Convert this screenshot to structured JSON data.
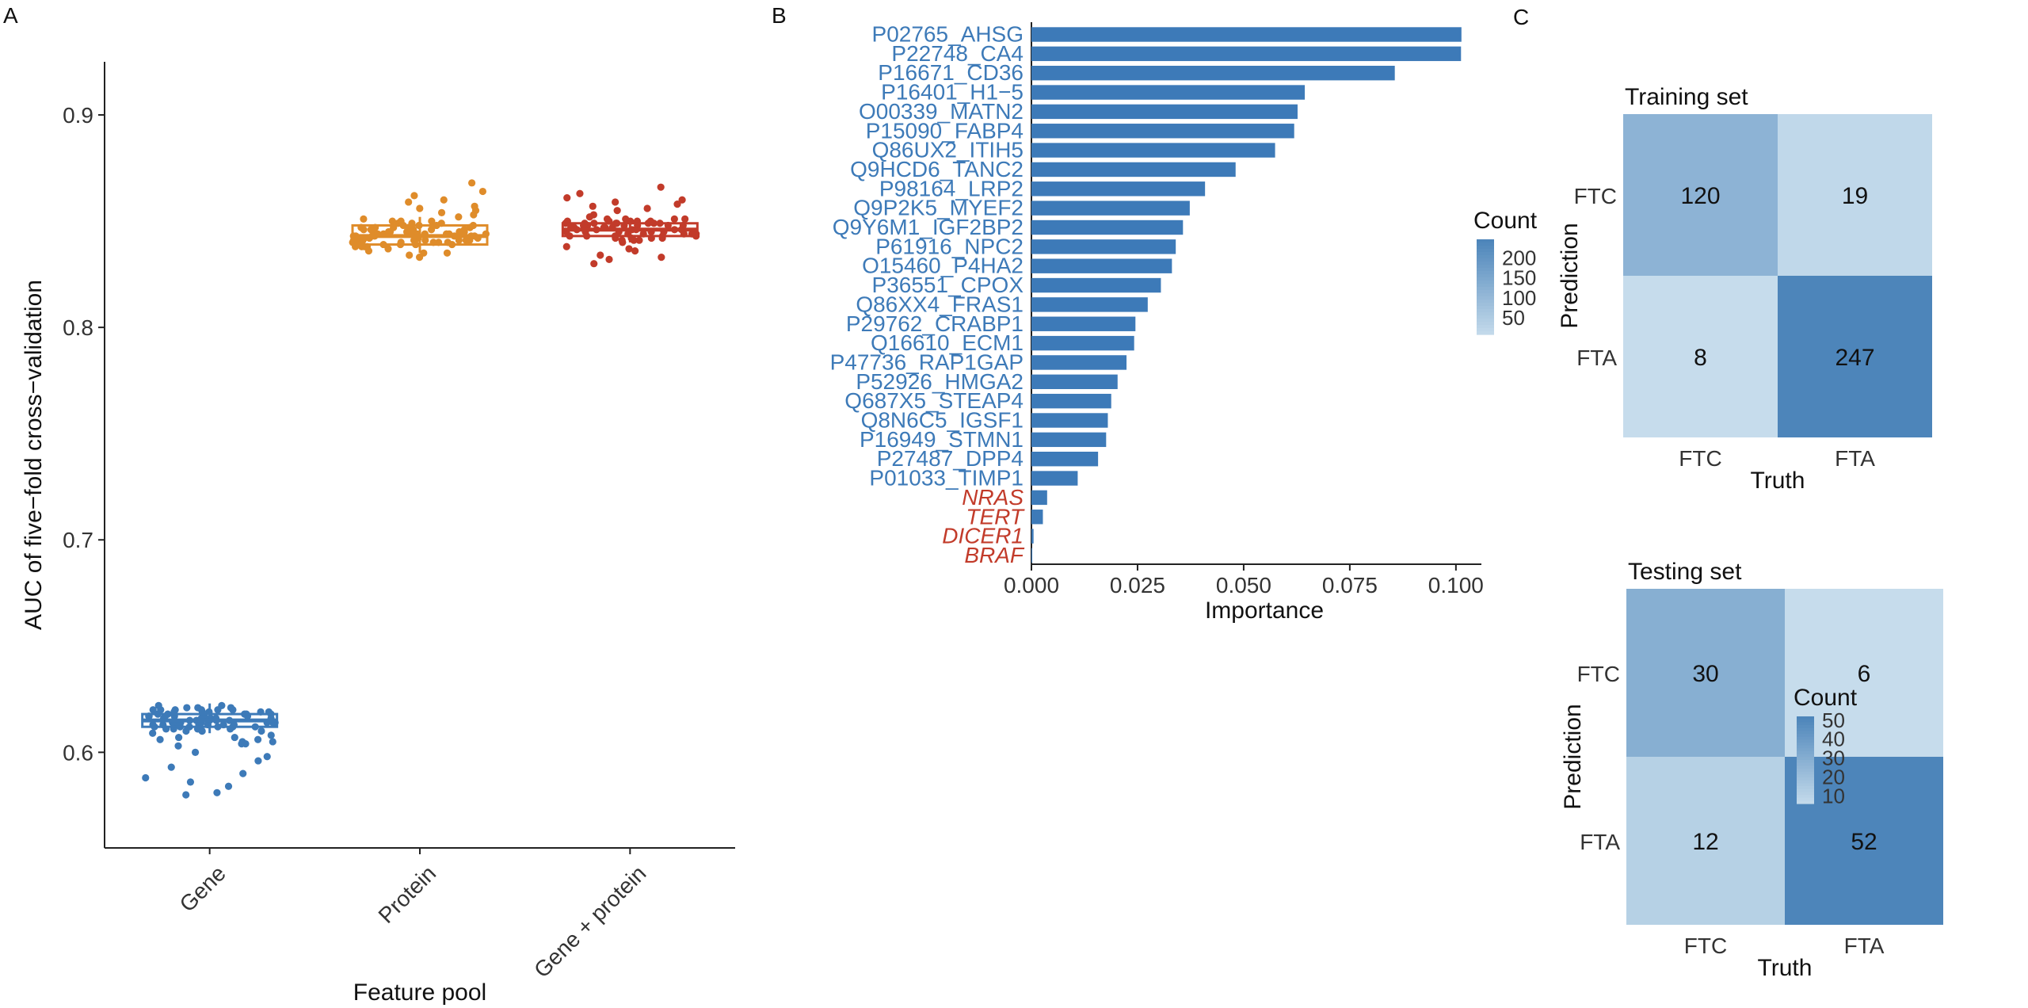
{
  "panels": {
    "a": "A",
    "b": "B",
    "c": "C"
  },
  "chart_data": [
    {
      "type": "scatter",
      "panel": "A",
      "xlabel": "Feature pool",
      "ylabel": "AUC of five−fold cross−validation",
      "categories": [
        "Gene",
        "Protein",
        "Gene + protein"
      ],
      "yticks": [
        0.6,
        0.7,
        0.8,
        0.9
      ],
      "ylim": [
        0.555,
        0.925
      ],
      "colors": [
        "#3d7ab8",
        "#df8c2a",
        "#c23b2a"
      ],
      "grid": false,
      "series": [
        {
          "median": 0.615,
          "q1": 0.612,
          "q3": 0.618,
          "whisker_low": 0.609,
          "whisker_high": 0.623,
          "values": [
            0.615,
            0.612,
            0.618,
            0.62,
            0.61,
            0.616,
            0.613,
            0.619,
            0.622,
            0.611,
            0.614,
            0.617,
            0.621,
            0.609,
            0.615,
            0.618,
            0.612,
            0.616,
            0.62,
            0.613,
            0.611,
            0.617,
            0.619,
            0.614,
            0.622,
            0.61,
            0.616,
            0.618,
            0.613,
            0.615,
            0.62,
            0.612,
            0.617,
            0.614,
            0.619,
            0.611,
            0.616,
            0.621,
            0.613,
            0.618,
            0.615,
            0.612,
            0.62,
            0.614,
            0.617,
            0.61,
            0.616,
            0.619,
            0.613,
            0.615,
            0.618,
            0.611,
            0.62,
            0.614,
            0.616,
            0.612,
            0.617,
            0.621,
            0.613,
            0.615,
            0.618,
            0.61,
            0.616,
            0.619,
            0.614,
            0.612,
            0.617,
            0.62,
            0.613,
            0.615,
            0.605,
            0.606,
            0.607,
            0.604,
            0.606,
            0.605,
            0.598,
            0.596,
            0.59,
            0.584,
            0.581,
            0.588,
            0.58,
            0.586,
            0.593,
            0.6,
            0.607,
            0.604,
            0.603,
            0.608
          ]
        },
        {
          "median": 0.843,
          "q1": 0.839,
          "q3": 0.848,
          "whisker_low": 0.835,
          "whisker_high": 0.852,
          "values": [
            0.843,
            0.84,
            0.846,
            0.849,
            0.838,
            0.844,
            0.841,
            0.847,
            0.85,
            0.839,
            0.842,
            0.845,
            0.848,
            0.837,
            0.843,
            0.846,
            0.84,
            0.844,
            0.849,
            0.841,
            0.839,
            0.845,
            0.847,
            0.842,
            0.851,
            0.838,
            0.844,
            0.846,
            0.841,
            0.843,
            0.848,
            0.84,
            0.845,
            0.842,
            0.847,
            0.839,
            0.844,
            0.85,
            0.841,
            0.846,
            0.843,
            0.84,
            0.848,
            0.842,
            0.845,
            0.838,
            0.844,
            0.847,
            0.841,
            0.843,
            0.846,
            0.839,
            0.849,
            0.842,
            0.844,
            0.84,
            0.845,
            0.85,
            0.841,
            0.843,
            0.846,
            0.838,
            0.844,
            0.847,
            0.842,
            0.84,
            0.845,
            0.848,
            0.841,
            0.843,
            0.835,
            0.834,
            0.836,
            0.853,
            0.854,
            0.856,
            0.857,
            0.86,
            0.862,
            0.864,
            0.868,
            0.859,
            0.833,
            0.835,
            0.852,
            0.855
          ]
        },
        {
          "median": 0.846,
          "q1": 0.843,
          "q3": 0.849,
          "whisker_low": 0.84,
          "whisker_high": 0.851,
          "values": [
            0.846,
            0.843,
            0.849,
            0.851,
            0.841,
            0.847,
            0.844,
            0.848,
            0.85,
            0.842,
            0.845,
            0.848,
            0.85,
            0.84,
            0.846,
            0.849,
            0.843,
            0.847,
            0.851,
            0.844,
            0.842,
            0.848,
            0.849,
            0.845,
            0.852,
            0.841,
            0.847,
            0.849,
            0.844,
            0.846,
            0.85,
            0.843,
            0.848,
            0.845,
            0.849,
            0.842,
            0.847,
            0.851,
            0.844,
            0.849,
            0.846,
            0.843,
            0.85,
            0.845,
            0.848,
            0.841,
            0.847,
            0.849,
            0.844,
            0.846,
            0.849,
            0.842,
            0.851,
            0.845,
            0.847,
            0.843,
            0.848,
            0.85,
            0.844,
            0.846,
            0.855,
            0.857,
            0.859,
            0.861,
            0.863,
            0.866,
            0.858,
            0.838,
            0.836,
            0.834,
            0.832,
            0.83,
            0.833,
            0.837,
            0.853,
            0.856,
            0.86
          ]
        }
      ]
    },
    {
      "type": "bar",
      "panel": "B",
      "orientation": "horizontal",
      "xlabel": "Importance",
      "xticks": [
        "0.000",
        "0.025",
        "0.050",
        "0.075",
        "0.100"
      ],
      "xlim": [
        0,
        0.106
      ],
      "bar_color": "#3d7ab8",
      "protein_label_color": "#3d7ab8",
      "gene_label_color": "#c23b2a",
      "categories": [
        "P02765_AHSG",
        "P22748_CA4",
        "P16671_CD36",
        "P16401_H1−5",
        "O00339_MATN2",
        "P15090_FABP4",
        "Q86UX2_ITIH5",
        "Q9HCD6_TANC2",
        "P98164_LRP2",
        "Q9P2K5_MYEF2",
        "Q9Y6M1_IGF2BP2",
        "P61916_NPC2",
        "O15460_P4HA2",
        "P36551_CPOX",
        "Q86XX4_FRAS1",
        "P29762_CRABP1",
        "Q16610_ECM1",
        "P47736_RAP1GAP",
        "P52926_HMGA2",
        "Q687X5_STEAP4",
        "Q8N6C5_IGSF1",
        "P16949_STMN1",
        "P27487_DPP4",
        "P01033_TIMP1",
        "NRAS",
        "TERT",
        "DICER1",
        "BRAF"
      ],
      "is_gene": [
        false,
        false,
        false,
        false,
        false,
        false,
        false,
        false,
        false,
        false,
        false,
        false,
        false,
        false,
        false,
        false,
        false,
        false,
        false,
        false,
        false,
        false,
        false,
        false,
        true,
        true,
        true,
        true
      ],
      "values": [
        0.1013,
        0.1012,
        0.0856,
        0.0644,
        0.0627,
        0.0619,
        0.0574,
        0.0481,
        0.0409,
        0.0373,
        0.0357,
        0.034,
        0.0331,
        0.0305,
        0.0274,
        0.0245,
        0.0242,
        0.0224,
        0.0203,
        0.0188,
        0.018,
        0.0176,
        0.0157,
        0.0109,
        0.0037,
        0.0027,
        0.0005,
        0.0002
      ]
    },
    {
      "type": "heatmap",
      "panel": "C",
      "title": "Training set",
      "xlabel": "Truth",
      "ylabel": "Prediction",
      "x": [
        "FTC",
        "FTA"
      ],
      "y": [
        "FTC",
        "FTA"
      ],
      "values": [
        [
          120,
          19
        ],
        [
          8,
          247
        ]
      ],
      "legend_title": "Count",
      "legend_ticks": [
        "200",
        "150",
        "100",
        "50"
      ],
      "color_low": "#c6dcec",
      "color_high": "#4d85ba"
    },
    {
      "type": "heatmap",
      "panel": "C",
      "title": "Testing set",
      "xlabel": "Truth",
      "ylabel": "Prediction",
      "x": [
        "FTC",
        "FTA"
      ],
      "y": [
        "FTC",
        "FTA"
      ],
      "values": [
        [
          30,
          6
        ],
        [
          12,
          52
        ]
      ],
      "legend_title": "Count",
      "legend_ticks": [
        "50",
        "40",
        "30",
        "20",
        "10"
      ],
      "color_low": "#c6dcec",
      "color_high": "#4d85ba"
    }
  ]
}
